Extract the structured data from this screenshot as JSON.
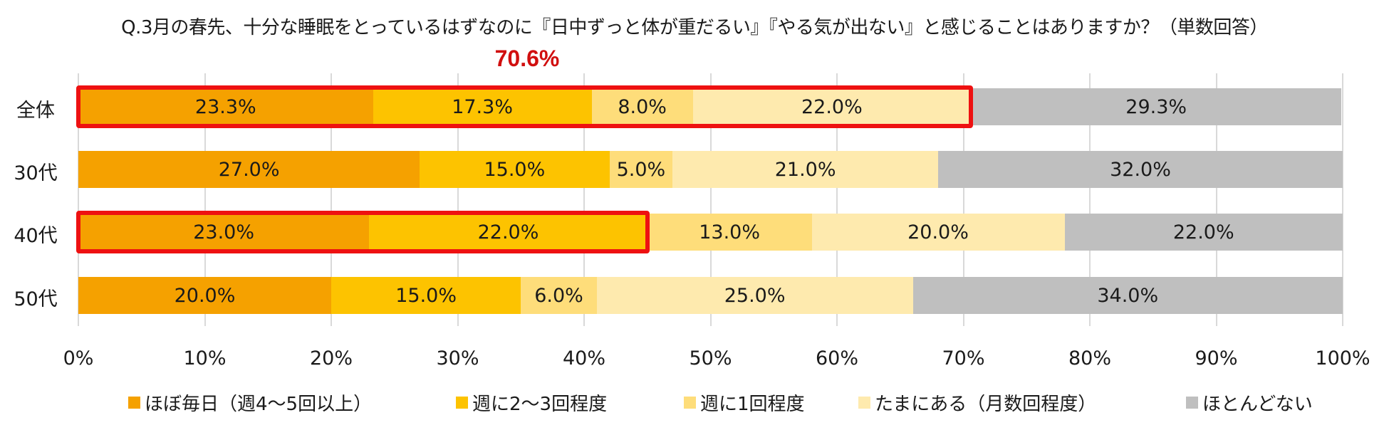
{
  "chart_data": {
    "type": "bar",
    "orientation": "horizontal",
    "stacked": true,
    "title": "Q.3月の春先、十分な睡眠をとっているはずなのに『日中ずっと体が重だるい』『やる気が出ない』と感じることはありますか？（単数回答）",
    "categories": [
      "全体",
      "30代",
      "40代",
      "50代"
    ],
    "series": [
      {
        "name": "ほぼ毎日（週4～5回以上）",
        "color": "#f5a100",
        "values": [
          23.3,
          27.0,
          23.0,
          20.0
        ]
      },
      {
        "name": "週に2～3回程度",
        "color": "#fdc300",
        "values": [
          17.3,
          15.0,
          22.0,
          15.0
        ]
      },
      {
        "name": "週に1回程度",
        "color": "#fedd7a",
        "values": [
          8.0,
          5.0,
          13.0,
          6.0
        ]
      },
      {
        "name": "たまにある（月数回程度）",
        "color": "#feeaae",
        "values": [
          22.0,
          21.0,
          20.0,
          25.0
        ]
      },
      {
        "name": "ほとんどない",
        "color": "#bfbfbf",
        "values": [
          29.3,
          32.0,
          22.0,
          34.0
        ]
      }
    ],
    "labels": [
      [
        "23.3%",
        "17.3%",
        "8.0%",
        "22.0%",
        "29.3%"
      ],
      [
        "27.0%",
        "15.0%",
        "5.0%",
        "21.0%",
        "32.0%"
      ],
      [
        "23.0%",
        "22.0%",
        "13.0%",
        "20.0%",
        "22.0%"
      ],
      [
        "20.0%",
        "15.0%",
        "6.0%",
        "25.0%",
        "34.0%"
      ]
    ],
    "xlabel": "",
    "ylabel": "",
    "xlim": [
      0,
      100
    ],
    "xticks": [
      "0%",
      "10%",
      "20%",
      "30%",
      "40%",
      "50%",
      "60%",
      "70%",
      "80%",
      "90%",
      "100%"
    ],
    "grid": true,
    "legend_position": "bottom",
    "annotations": [
      {
        "text": "70.6%",
        "color": "#d10f0f",
        "note": "全体 highlight: first four segments (23.3+17.3+8.0+22.0)"
      },
      {
        "text": "",
        "note": "40代 highlight: first two segments (23.0+22.0)"
      }
    ]
  },
  "callout": "70.6%",
  "highlight_color": "#ee1111"
}
